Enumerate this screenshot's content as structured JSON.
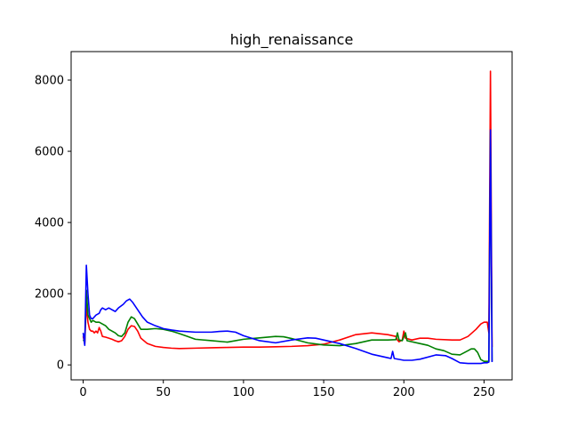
{
  "chart_data": {
    "type": "line",
    "title": "high_renaissance",
    "xlabel": "",
    "ylabel": "",
    "xlim": [
      -7.5,
      267.5
    ],
    "ylim": [
      -420,
      8800
    ],
    "x_ticks": [
      0,
      50,
      100,
      150,
      200,
      250
    ],
    "y_ticks": [
      0,
      2000,
      4000,
      6000,
      8000
    ],
    "grid": false,
    "legend": "none",
    "series": [
      {
        "color": "#ff0000",
        "points": [
          [
            0,
            800
          ],
          [
            1,
            600
          ],
          [
            2,
            1700
          ],
          [
            3,
            1200
          ],
          [
            4,
            1000
          ],
          [
            5,
            950
          ],
          [
            6,
            950
          ],
          [
            7,
            900
          ],
          [
            8,
            950
          ],
          [
            9,
            900
          ],
          [
            10,
            1050
          ],
          [
            11,
            950
          ],
          [
            12,
            800
          ],
          [
            14,
            780
          ],
          [
            16,
            750
          ],
          [
            18,
            720
          ],
          [
            20,
            680
          ],
          [
            22,
            650
          ],
          [
            24,
            680
          ],
          [
            26,
            800
          ],
          [
            28,
            1000
          ],
          [
            30,
            1100
          ],
          [
            32,
            1080
          ],
          [
            34,
            950
          ],
          [
            36,
            750
          ],
          [
            40,
            600
          ],
          [
            45,
            520
          ],
          [
            50,
            490
          ],
          [
            55,
            470
          ],
          [
            60,
            460
          ],
          [
            70,
            470
          ],
          [
            80,
            480
          ],
          [
            90,
            490
          ],
          [
            100,
            500
          ],
          [
            110,
            500
          ],
          [
            120,
            510
          ],
          [
            130,
            520
          ],
          [
            140,
            540
          ],
          [
            150,
            580
          ],
          [
            160,
            700
          ],
          [
            170,
            850
          ],
          [
            180,
            900
          ],
          [
            190,
            850
          ],
          [
            195,
            800
          ],
          [
            196,
            700
          ],
          [
            197,
            650
          ],
          [
            199,
            700
          ],
          [
            200,
            950
          ],
          [
            201,
            750
          ],
          [
            205,
            700
          ],
          [
            210,
            750
          ],
          [
            215,
            750
          ],
          [
            220,
            720
          ],
          [
            230,
            700
          ],
          [
            235,
            700
          ],
          [
            240,
            800
          ],
          [
            245,
            1000
          ],
          [
            248,
            1150
          ],
          [
            250,
            1200
          ],
          [
            252,
            1200
          ],
          [
            253,
            900
          ],
          [
            254,
            8250
          ],
          [
            255,
            500
          ]
        ]
      },
      {
        "color": "#008000",
        "points": [
          [
            0,
            700
          ],
          [
            1,
            650
          ],
          [
            2,
            2100
          ],
          [
            3,
            1400
          ],
          [
            4,
            1300
          ],
          [
            5,
            1200
          ],
          [
            6,
            1250
          ],
          [
            8,
            1200
          ],
          [
            10,
            1200
          ],
          [
            12,
            1150
          ],
          [
            14,
            1100
          ],
          [
            16,
            1000
          ],
          [
            18,
            950
          ],
          [
            20,
            900
          ],
          [
            22,
            820
          ],
          [
            24,
            800
          ],
          [
            26,
            900
          ],
          [
            28,
            1200
          ],
          [
            30,
            1350
          ],
          [
            32,
            1300
          ],
          [
            34,
            1150
          ],
          [
            36,
            1000
          ],
          [
            40,
            1000
          ],
          [
            45,
            1020
          ],
          [
            50,
            1000
          ],
          [
            55,
            950
          ],
          [
            60,
            880
          ],
          [
            65,
            800
          ],
          [
            70,
            720
          ],
          [
            80,
            680
          ],
          [
            90,
            640
          ],
          [
            100,
            720
          ],
          [
            110,
            760
          ],
          [
            120,
            800
          ],
          [
            125,
            790
          ],
          [
            130,
            740
          ],
          [
            140,
            620
          ],
          [
            150,
            560
          ],
          [
            160,
            540
          ],
          [
            170,
            600
          ],
          [
            180,
            700
          ],
          [
            190,
            700
          ],
          [
            195,
            710
          ],
          [
            196,
            900
          ],
          [
            197,
            700
          ],
          [
            199,
            680
          ],
          [
            201,
            900
          ],
          [
            202,
            680
          ],
          [
            210,
            600
          ],
          [
            215,
            550
          ],
          [
            220,
            450
          ],
          [
            225,
            400
          ],
          [
            230,
            300
          ],
          [
            235,
            280
          ],
          [
            240,
            400
          ],
          [
            242,
            450
          ],
          [
            244,
            450
          ],
          [
            246,
            350
          ],
          [
            248,
            150
          ],
          [
            250,
            100
          ],
          [
            252,
            100
          ],
          [
            253,
            100
          ],
          [
            254,
            6550
          ],
          [
            255,
            100
          ]
        ]
      },
      {
        "color": "#0000ff",
        "points": [
          [
            0,
            900
          ],
          [
            1,
            550
          ],
          [
            2,
            2800
          ],
          [
            3,
            2000
          ],
          [
            4,
            1400
          ],
          [
            5,
            1300
          ],
          [
            6,
            1300
          ],
          [
            8,
            1400
          ],
          [
            10,
            1450
          ],
          [
            11,
            1550
          ],
          [
            12,
            1600
          ],
          [
            14,
            1550
          ],
          [
            16,
            1600
          ],
          [
            18,
            1550
          ],
          [
            20,
            1500
          ],
          [
            22,
            1600
          ],
          [
            25,
            1700
          ],
          [
            27,
            1800
          ],
          [
            29,
            1850
          ],
          [
            31,
            1750
          ],
          [
            34,
            1550
          ],
          [
            37,
            1350
          ],
          [
            40,
            1200
          ],
          [
            45,
            1100
          ],
          [
            50,
            1020
          ],
          [
            55,
            980
          ],
          [
            60,
            950
          ],
          [
            70,
            920
          ],
          [
            80,
            920
          ],
          [
            85,
            940
          ],
          [
            90,
            950
          ],
          [
            95,
            920
          ],
          [
            100,
            820
          ],
          [
            110,
            680
          ],
          [
            120,
            620
          ],
          [
            130,
            700
          ],
          [
            140,
            760
          ],
          [
            145,
            750
          ],
          [
            150,
            700
          ],
          [
            160,
            600
          ],
          [
            170,
            460
          ],
          [
            180,
            300
          ],
          [
            190,
            200
          ],
          [
            192,
            180
          ],
          [
            193,
            380
          ],
          [
            194,
            180
          ],
          [
            200,
            130
          ],
          [
            205,
            130
          ],
          [
            210,
            160
          ],
          [
            220,
            280
          ],
          [
            226,
            260
          ],
          [
            230,
            180
          ],
          [
            235,
            60
          ],
          [
            240,
            40
          ],
          [
            245,
            40
          ],
          [
            248,
            40
          ],
          [
            250,
            60
          ],
          [
            252,
            60
          ],
          [
            253,
            80
          ],
          [
            254,
            6600
          ],
          [
            255,
            80
          ]
        ]
      }
    ]
  }
}
